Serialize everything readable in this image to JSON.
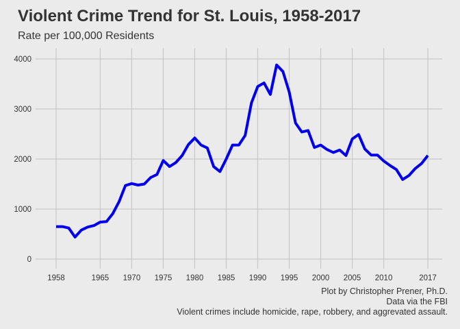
{
  "chart_data": {
    "type": "line",
    "title": "Violent Crime Trend for St. Louis, 1958-2017",
    "subtitle": "Rate per 100,000 Residents",
    "xlabel": "",
    "ylabel": "",
    "xlim": [
      1958,
      2017
    ],
    "ylim": [
      0,
      4000
    ],
    "x_ticks": [
      1958,
      1965,
      1970,
      1975,
      1980,
      1985,
      1990,
      1995,
      2000,
      2005,
      2010,
      2017
    ],
    "y_ticks": [
      0,
      1000,
      2000,
      3000,
      4000
    ],
    "grid": true,
    "line_color": "#0000ee",
    "series": [
      {
        "x": [
          1958,
          1959,
          1960,
          1961,
          1962,
          1963,
          1964,
          1965,
          1966,
          1967,
          1968,
          1969,
          1970,
          1971,
          1972,
          1973,
          1974,
          1975,
          1976,
          1977,
          1978,
          1979,
          1980,
          1981,
          1982,
          1983,
          1984,
          1985,
          1986,
          1987,
          1988,
          1989,
          1990,
          1991,
          1992,
          1993,
          1994,
          1995,
          1996,
          1997,
          1998,
          1999,
          2000,
          2001,
          2002,
          2003,
          2004,
          2005,
          2006,
          2007,
          2008,
          2009,
          2010,
          2011,
          2012,
          2013,
          2014,
          2015,
          2016,
          2017
        ],
        "y": [
          650,
          650,
          620,
          440,
          580,
          640,
          670,
          740,
          750,
          910,
          1150,
          1470,
          1510,
          1480,
          1500,
          1630,
          1690,
          1970,
          1850,
          1930,
          2070,
          2290,
          2420,
          2280,
          2220,
          1850,
          1750,
          2000,
          2280,
          2280,
          2470,
          3120,
          3450,
          3520,
          3290,
          3880,
          3750,
          3340,
          2720,
          2540,
          2570,
          2230,
          2280,
          2190,
          2130,
          2180,
          2070,
          2400,
          2490,
          2200,
          2080,
          2080,
          1960,
          1870,
          1790,
          1590,
          1670,
          1810,
          1910,
          2070
        ]
      }
    ]
  },
  "caption": {
    "line1": "Plot by Christopher Prener, Ph.D.",
    "line2": "Data via the FBI",
    "line3": "Violent crimes include homicide, rape, robbery, and aggrevated assault."
  }
}
